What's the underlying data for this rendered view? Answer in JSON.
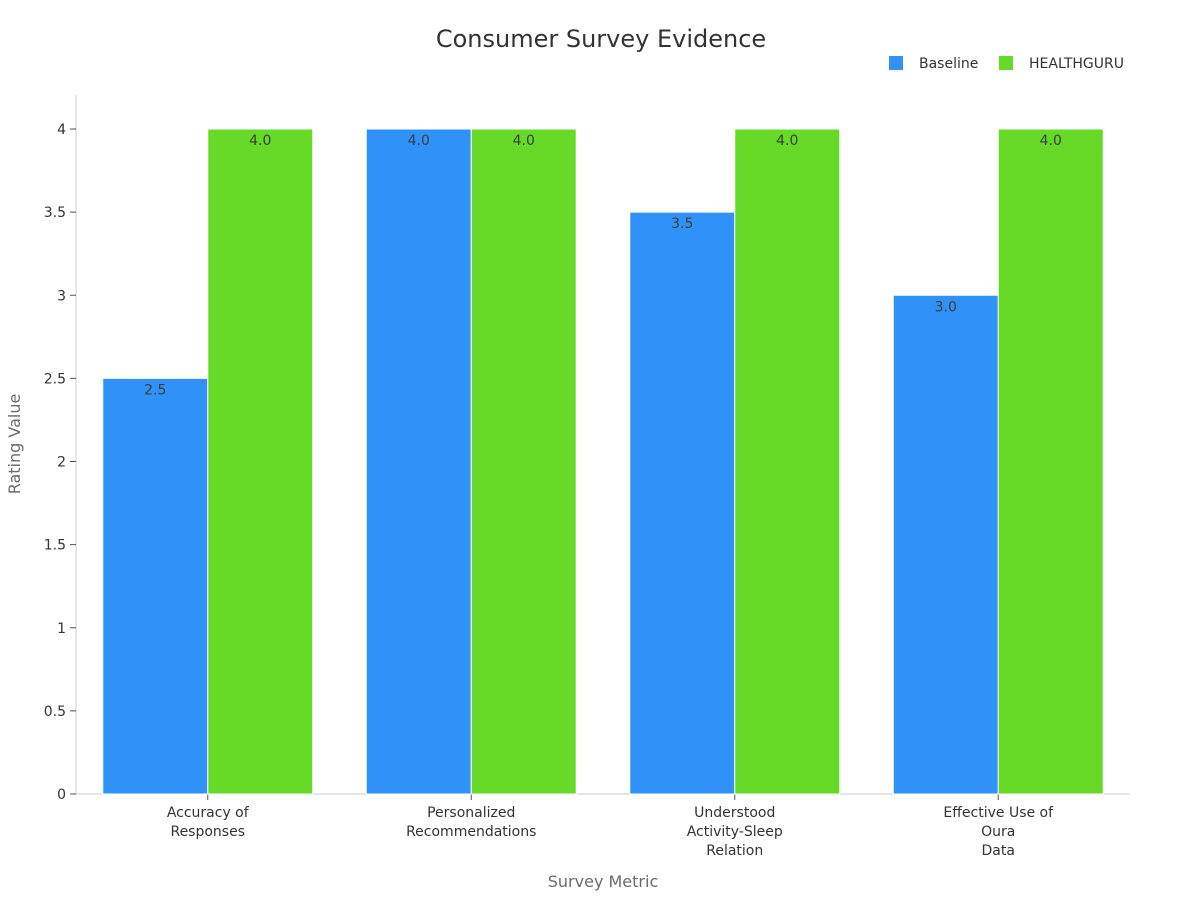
{
  "chart_data": {
    "type": "bar",
    "title": "Consumer Survey Evidence",
    "xlabel": "Survey Metric",
    "ylabel": "Rating Value",
    "ylim": [
      0,
      4.2
    ],
    "yticks": [
      0,
      0.5,
      1,
      1.5,
      2,
      2.5,
      3,
      3.5,
      4
    ],
    "yticks_labels": [
      "0",
      "0.5",
      "1",
      "1.5",
      "2",
      "2.5",
      "3",
      "3.5",
      "4"
    ],
    "categories": [
      [
        "Accuracy of",
        "Responses"
      ],
      [
        "Personalized",
        "Recommendations"
      ],
      [
        "Understood",
        "Activity-Sleep",
        "Relation"
      ],
      [
        "Effective Use of",
        "Oura",
        "Data"
      ]
    ],
    "series": [
      {
        "name": "Baseline",
        "color": "#3092f8",
        "values": [
          2.5,
          4.0,
          3.5,
          3.0
        ],
        "labels": [
          "2.5",
          "4.0",
          "3.5",
          "3.0"
        ]
      },
      {
        "name": "HEALTHGURU",
        "color": "#66da26",
        "values": [
          4.0,
          4.0,
          4.0,
          4.0
        ],
        "labels": [
          "4.0",
          "4.0",
          "4.0",
          "4.0"
        ]
      }
    ],
    "legend_position": "top-right",
    "grid": false
  }
}
